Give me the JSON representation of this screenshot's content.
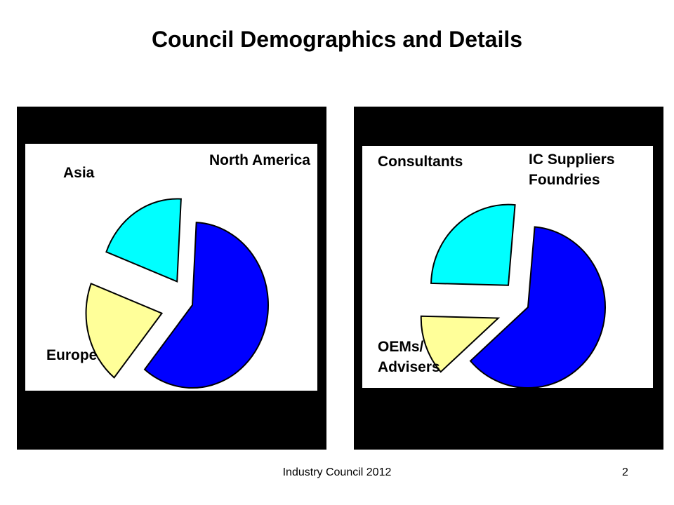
{
  "title": "Council Demographics and Details",
  "footer": "Industry Council 2012",
  "page_number": "2",
  "colors": {
    "blue": "#0000ff",
    "cyan": "#00ffff",
    "yellow": "#ffff99",
    "panel": "#000000"
  },
  "chart_data": [
    {
      "type": "pie",
      "title": "",
      "slices": [
        {
          "label": "North America",
          "value": 60,
          "color": "#0000ff"
        },
        {
          "label": "Europe",
          "value": 20,
          "color": "#ffff99"
        },
        {
          "label": "Asia",
          "value": 20,
          "color": "#00ffff"
        }
      ]
    },
    {
      "type": "pie",
      "title": "",
      "slices": [
        {
          "label": "IC Suppliers\nFoundries",
          "value": 62,
          "color": "#0000ff"
        },
        {
          "label": "OEMs/\nAdvisers",
          "value": 12,
          "color": "#ffff99"
        },
        {
          "label": "Consultants",
          "value": 26,
          "color": "#00ffff"
        }
      ]
    }
  ]
}
